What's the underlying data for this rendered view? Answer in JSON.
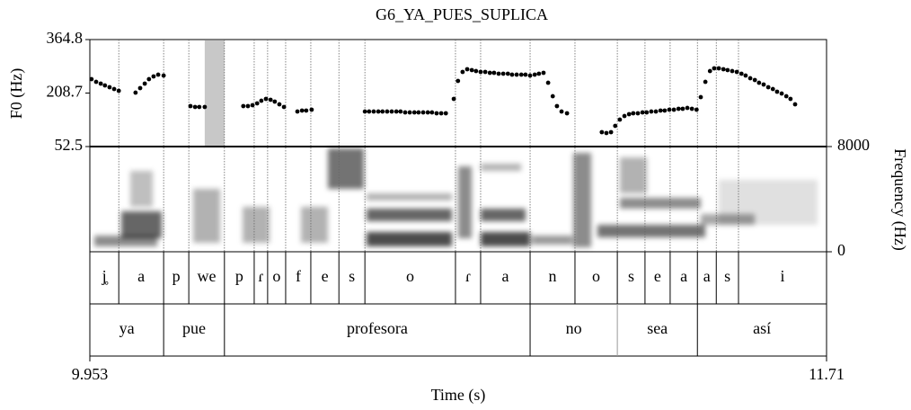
{
  "chart_data": {
    "type": "scatter",
    "title": "G6_YA_PUES_SUPLICA",
    "xlabel": "Time (s)",
    "ylabel": "F0 (Hz)",
    "y2label": "Frequency (Hz)",
    "xlim": [
      9.953,
      11.71
    ],
    "xticks": [
      9.953,
      11.71
    ],
    "ylim": [
      52.5,
      364.8
    ],
    "yticks": [
      52.5,
      208.7,
      364.8
    ],
    "y2lim": [
      0,
      8000
    ],
    "y2ticks": [
      0,
      8000
    ],
    "color": "#000000",
    "shaded": [
      10.227,
      10.274
    ],
    "x": [
      9.957,
      9.968,
      9.979,
      9.989,
      10.0,
      10.011,
      10.022,
      10.062,
      10.073,
      10.084,
      10.094,
      10.105,
      10.116,
      10.129,
      10.193,
      10.204,
      10.214,
      10.227,
      10.319,
      10.33,
      10.341,
      10.352,
      10.362,
      10.373,
      10.384,
      10.394,
      10.405,
      10.416,
      10.448,
      10.459,
      10.469,
      10.482,
      10.609,
      10.619,
      10.63,
      10.641,
      10.651,
      10.662,
      10.673,
      10.684,
      10.694,
      10.705,
      10.716,
      10.727,
      10.737,
      10.748,
      10.759,
      10.769,
      10.78,
      10.791,
      10.802,
      10.821,
      10.831,
      10.842,
      10.853,
      10.864,
      10.874,
      10.885,
      10.896,
      10.907,
      10.917,
      10.928,
      10.939,
      10.95,
      10.96,
      10.971,
      10.982,
      10.992,
      11.003,
      11.014,
      11.024,
      11.035,
      11.046,
      11.057,
      11.067,
      11.078,
      11.091,
      11.174,
      11.185,
      11.196,
      11.206,
      11.217,
      11.228,
      11.239,
      11.249,
      11.26,
      11.271,
      11.281,
      11.292,
      11.303,
      11.314,
      11.324,
      11.335,
      11.346,
      11.357,
      11.367,
      11.378,
      11.389,
      11.4,
      11.41,
      11.421,
      11.432,
      11.442,
      11.453,
      11.464,
      11.474,
      11.485,
      11.496,
      11.507,
      11.517,
      11.528,
      11.539,
      11.549,
      11.56,
      11.571,
      11.582,
      11.592,
      11.603,
      11.614,
      11.624,
      11.635
    ],
    "values": [
      249.3,
      241.4,
      236.2,
      230.9,
      225.7,
      220.4,
      215.2,
      209.9,
      223.1,
      236.2,
      249.3,
      257.2,
      262.4,
      259.8,
      170.6,
      168.0,
      168.0,
      168.0,
      170.6,
      170.6,
      173.2,
      178.5,
      186.3,
      191.6,
      189.0,
      183.7,
      175.8,
      168.0,
      154.8,
      157.5,
      157.5,
      160.1,
      154.8,
      154.8,
      154.8,
      154.8,
      154.8,
      154.8,
      154.8,
      154.8,
      154.8,
      152.2,
      152.2,
      152.2,
      152.2,
      152.2,
      152.2,
      152.2,
      149.6,
      149.6,
      149.6,
      191.6,
      244.1,
      270.3,
      278.2,
      275.6,
      272.9,
      270.3,
      270.3,
      267.7,
      267.7,
      265.1,
      265.1,
      265.1,
      262.4,
      262.4,
      262.4,
      262.4,
      259.8,
      262.4,
      265.1,
      267.7,
      238.8,
      199.4,
      170.6,
      154.8,
      149.6,
      94.5,
      91.9,
      94.5,
      112.9,
      131.2,
      141.7,
      147.0,
      149.6,
      149.6,
      152.2,
      152.2,
      154.8,
      154.8,
      157.5,
      157.5,
      160.1,
      160.1,
      162.7,
      162.7,
      165.3,
      162.7,
      160.1,
      196.8,
      241.4,
      272.9,
      280.8,
      280.8,
      278.2,
      275.6,
      272.9,
      270.3,
      265.1,
      259.8,
      251.9,
      246.7,
      238.8,
      233.6,
      225.7,
      220.4,
      212.6,
      207.3,
      199.4,
      191.6,
      175.8
    ],
    "tiers": [
      {
        "labels": [
          "j̥",
          "a",
          "p",
          "we",
          "p",
          "ɾ",
          "o",
          "f",
          "e",
          "s",
          "o",
          "ɾ",
          "a",
          "n",
          "o",
          "s",
          "e",
          "a",
          "a",
          "s",
          "i"
        ],
        "bounds": [
          9.953,
          10.022,
          10.129,
          10.189,
          10.274,
          10.345,
          10.377,
          10.42,
          10.48,
          10.547,
          10.609,
          10.825,
          10.885,
          11.003,
          11.11,
          11.211,
          11.277,
          11.337,
          11.402,
          11.447,
          11.5,
          11.71
        ]
      },
      {
        "labels": [
          "ya",
          "pue",
          "profesora",
          "no",
          "sea",
          "así"
        ],
        "bounds": [
          9.953,
          10.129,
          10.274,
          11.003,
          11.211,
          11.402,
          11.71
        ]
      }
    ]
  }
}
